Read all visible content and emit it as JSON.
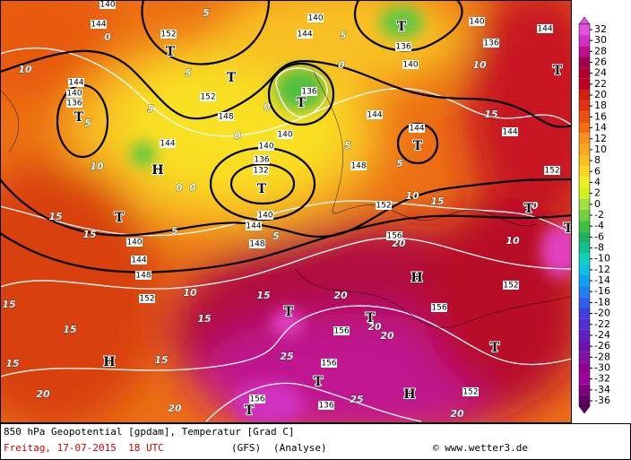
{
  "map": {
    "geopotential_labels": [
      "144",
      "140",
      "152",
      "144",
      "140",
      "136",
      "140",
      "140",
      "136",
      "144",
      "136",
      "140",
      "144",
      "140",
      "136",
      "152",
      "148",
      "144",
      "144",
      "144",
      "144",
      "140",
      "136",
      "132",
      "148",
      "152",
      "152",
      "140",
      "144",
      "140",
      "144",
      "148",
      "148",
      "152",
      "156",
      "152",
      "156",
      "156",
      "156",
      "156",
      "136",
      "152"
    ],
    "temperature_labels": [
      "10",
      "5",
      "0",
      "5",
      "5",
      "5",
      "10",
      "0",
      "0",
      "5",
      "15",
      "15",
      "5",
      "10",
      "15",
      "15",
      "15",
      "15",
      "15",
      "15",
      "20",
      "20",
      "25",
      "25",
      "20",
      "20",
      "20",
      "20",
      "15",
      "10",
      "10",
      "10",
      "5",
      "5",
      "5",
      "0",
      "0",
      "0",
      "20",
      "15",
      "10"
    ],
    "pressure_centers": [
      "T",
      "T",
      "T",
      "T",
      "T",
      "H",
      "T",
      "T",
      "T",
      "T",
      "T",
      "T",
      "H",
      "T",
      "T",
      "H",
      "T",
      "T",
      "H",
      "T"
    ]
  },
  "colorbar": {
    "ticks": [
      32,
      30,
      28,
      26,
      24,
      22,
      20,
      18,
      16,
      14,
      12,
      10,
      8,
      6,
      4,
      2,
      0,
      -2,
      -4,
      -6,
      -8,
      -10,
      -12,
      -14,
      -16,
      -18,
      -20,
      -22,
      -24,
      -26,
      -28,
      -30,
      -32,
      -34,
      -36
    ],
    "colors": [
      "#e850e0",
      "#d030c8",
      "#c01090",
      "#a00050",
      "#b00030",
      "#c00020",
      "#d02010",
      "#e03010",
      "#e85010",
      "#f07010",
      "#f89020",
      "#f8a820",
      "#f8c020",
      "#f8d820",
      "#f0f020",
      "#d0f020",
      "#a0e040",
      "#70d040",
      "#40c040",
      "#20b060",
      "#10c090",
      "#10d0c0",
      "#10c0e0",
      "#10a0f0",
      "#2080f0",
      "#3060f0",
      "#4040e0",
      "#5030d0",
      "#6020c0",
      "#7010b0",
      "#8010a0",
      "#900090",
      "#a000a0",
      "#800080",
      "#600060"
    ]
  },
  "footer": {
    "title": "850 hPa Geopotential [gpdam], Temperatur [Grad C]",
    "date": "Freitag, 17-07-2015  18 UTC",
    "model": "(GFS)",
    "run": "(Analyse)",
    "credit": "© www.wetter3.de"
  }
}
